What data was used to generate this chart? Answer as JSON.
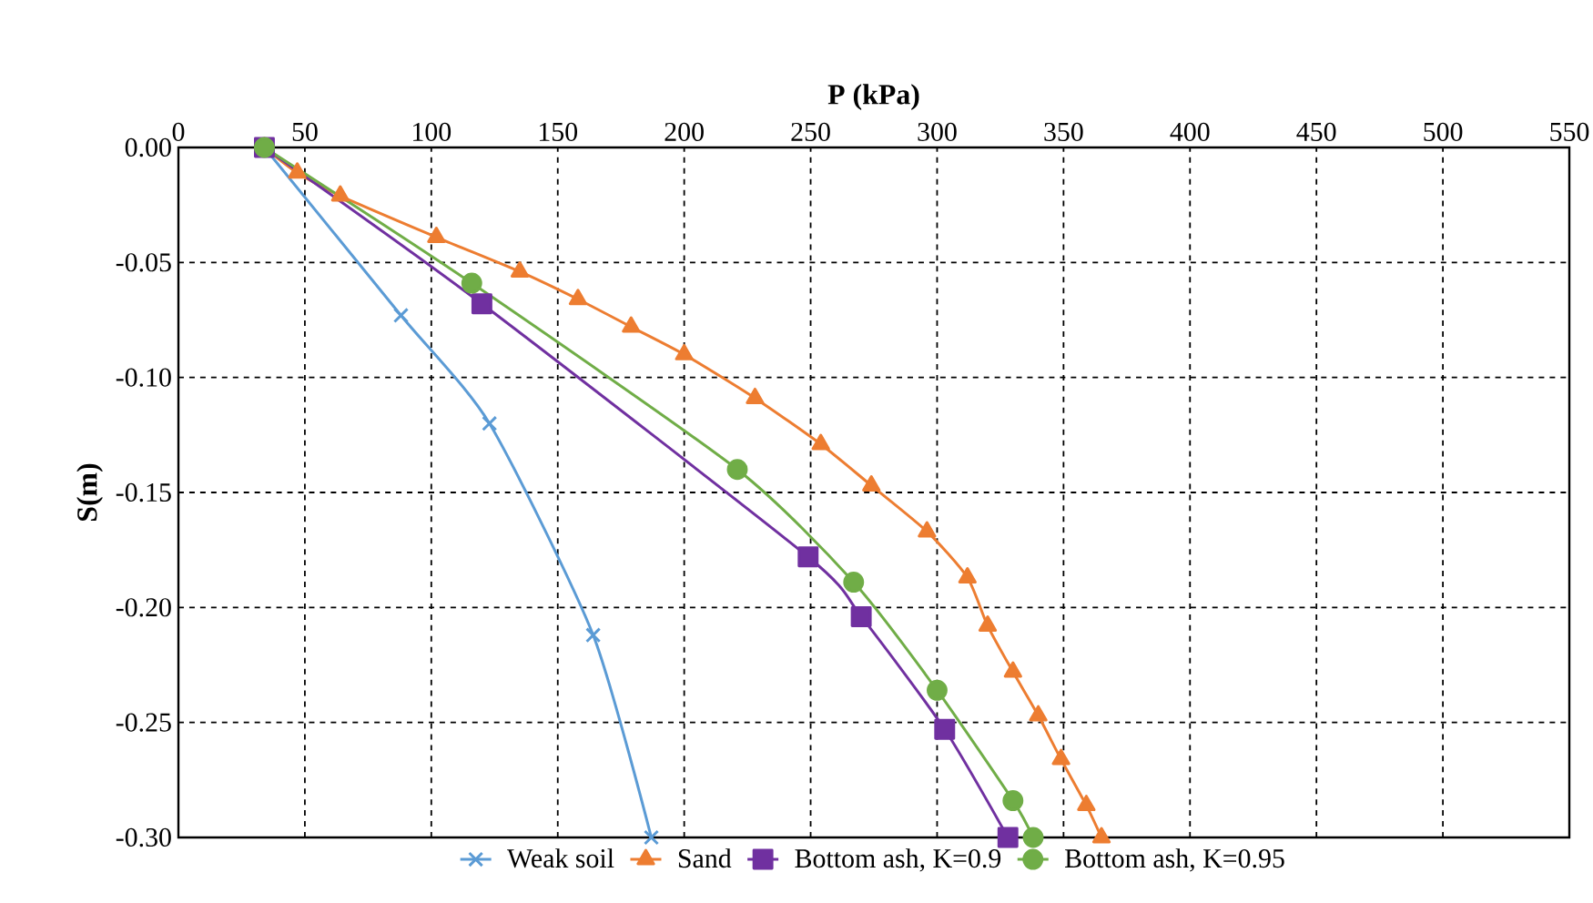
{
  "chart_data": {
    "type": "line",
    "xlabel": "P (kPa)",
    "ylabel": "S(m)",
    "xlim": [
      0,
      550
    ],
    "xticks": [
      0,
      50,
      100,
      150,
      200,
      250,
      300,
      350,
      400,
      450,
      500,
      550
    ],
    "ylim": [
      -0.3,
      0
    ],
    "yticks": [
      {
        "value": 0,
        "label": "0.00"
      },
      {
        "value": -0.05,
        "label": "-0.05"
      },
      {
        "value": -0.1,
        "label": "-0.10"
      },
      {
        "value": -0.15,
        "label": "-0.15"
      },
      {
        "value": -0.2,
        "label": "-0.20"
      },
      {
        "value": -0.25,
        "label": "-0.25"
      },
      {
        "value": -0.3,
        "label": "-0.30"
      }
    ],
    "grid": true,
    "legend": "bottom",
    "line_style": "solid",
    "series": [
      {
        "name": "Weak soil",
        "color": "#5b9bd5",
        "marker": "cross",
        "x": [
          34,
          88,
          123,
          164,
          187
        ],
        "values": [
          0,
          -0.073,
          -0.12,
          -0.212,
          -0.3
        ]
      },
      {
        "name": "Sand",
        "color": "#ed7d31",
        "marker": "triangle",
        "x": [
          34,
          47,
          64,
          102,
          135,
          158,
          179,
          200,
          228,
          254,
          274,
          296,
          312,
          320,
          330,
          340,
          349,
          359,
          365
        ],
        "values": [
          0,
          -0.011,
          -0.021,
          -0.039,
          -0.054,
          -0.066,
          -0.078,
          -0.09,
          -0.109,
          -0.129,
          -0.147,
          -0.167,
          -0.187,
          -0.208,
          -0.228,
          -0.247,
          -0.266,
          -0.286,
          -0.3
        ]
      },
      {
        "name": "Bottom ash, K=0.9",
        "color": "#7030a0",
        "marker": "square",
        "x": [
          34,
          120,
          249,
          270,
          303,
          328
        ],
        "values": [
          0,
          -0.068,
          -0.178,
          -0.204,
          -0.253,
          -0.3
        ]
      },
      {
        "name": "Bottom ash, K=0.95",
        "color": "#70ad47",
        "marker": "circle",
        "x": [
          34,
          116,
          221,
          267,
          300,
          330,
          338
        ],
        "values": [
          0,
          -0.059,
          -0.14,
          -0.189,
          -0.236,
          -0.284,
          -0.3
        ]
      }
    ]
  }
}
